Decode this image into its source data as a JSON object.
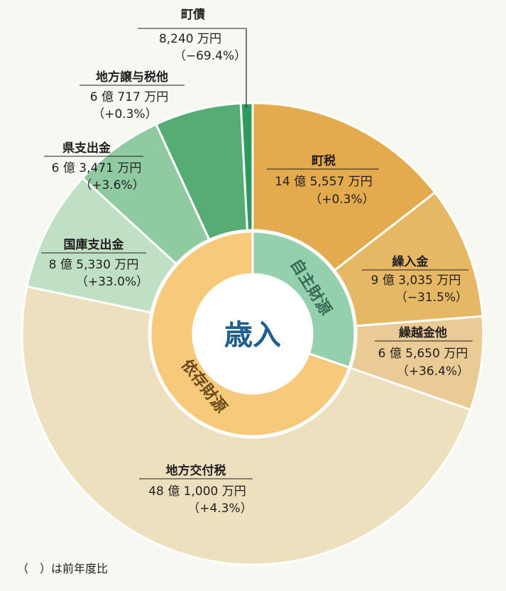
{
  "chart_data": {
    "type": "pie",
    "title": "歳入",
    "unit_note": "（　）は前年度比",
    "groups": [
      {
        "name": "自主財源",
        "color": "#94d0ad"
      },
      {
        "name": "依存財源",
        "color": "#f6c97b"
      }
    ],
    "slices": [
      {
        "name": "町税",
        "value_text": "14 億 5,557 万円",
        "change": "（+0.3%）",
        "value": 145557,
        "group": "自主財源",
        "color": "#e3aa4e"
      },
      {
        "name": "繰入金",
        "value_text": "9 億 3,035 万円",
        "change": "（−31.5%）",
        "value": 93035,
        "group": "自主財源",
        "color": "#e6b865"
      },
      {
        "name": "繰越金他",
        "value_text": "6 億 5,650 万円",
        "change": "（+36.4%）",
        "value": 65650,
        "group": "自主財源",
        "color": "#ebcb95"
      },
      {
        "name": "地方交付税",
        "value_text": "48 億 1,000 万円",
        "change": "（+4.3%）",
        "value": 481000,
        "group": "依存財源",
        "color": "#ede0bf"
      },
      {
        "name": "国庫支出金",
        "value_text": "8 億 5,330 万円",
        "change": "（+33.0%）",
        "value": 85330,
        "group": "依存財源",
        "color": "#bfe0c5"
      },
      {
        "name": "県支出金",
        "value_text": "6 億 3,471 万円",
        "change": "（+3.6%）",
        "value": 63471,
        "group": "依存財源",
        "color": "#8fcaa0"
      },
      {
        "name": "地方譲与税他",
        "value_text": "6 億 717 万円",
        "change": "（+0.3%）",
        "value": 60717,
        "group": "依存財源",
        "color": "#55ad74"
      },
      {
        "name": "町債",
        "value_text": "8,240 万円",
        "change": "（−69.4%）",
        "value": 8240,
        "group": "依存財源",
        "color": "#2f9a5e"
      }
    ]
  }
}
